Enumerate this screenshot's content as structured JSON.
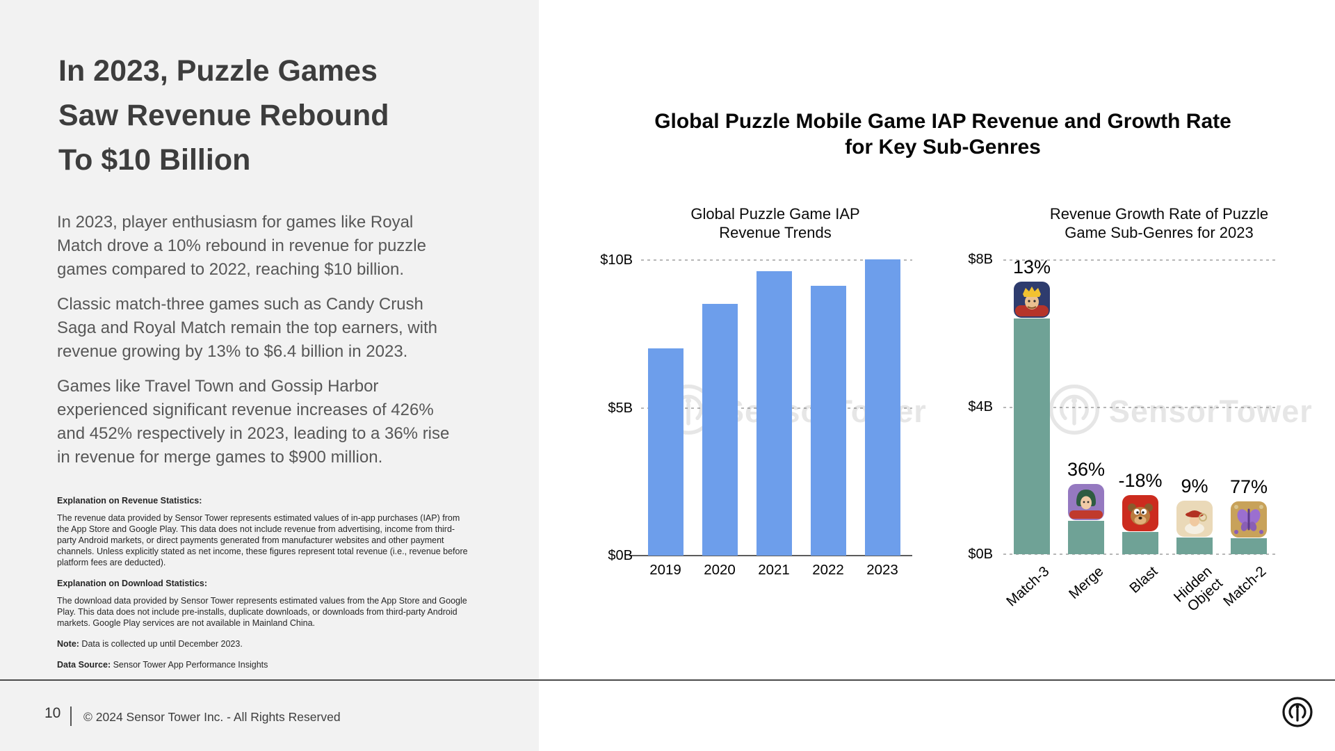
{
  "left_panel": {
    "headline_lines": [
      "In 2023, Puzzle Games",
      "Saw Revenue Rebound",
      "To $10 Billion"
    ],
    "paragraphs": [
      "In 2023, player enthusiasm for games like Royal Match drove a 10% rebound in revenue for puzzle games compared to 2022, reaching $10 billion.",
      "Classic match-three games such as Candy Crush Saga and Royal Match remain the top earners, with revenue growing by 13% to $6.4 billion in 2023.",
      "Games like Travel Town and Gossip Harbor experienced significant revenue increases of 426% and 452% respectively in 2023, leading to a 36% rise in revenue for merge games to $900 million."
    ],
    "notes": {
      "revenue_heading": "Explanation on Revenue Statistics:",
      "revenue_body": "The revenue data provided by Sensor Tower represents estimated values of in-app purchases (IAP) from the App Store and Google Play. This data does not include revenue from advertising, income from third-party Android markets, or direct payments generated from manufacturer websites and other payment channels. Unless explicitly stated as net income, these figures represent total revenue (i.e., revenue before platform fees are deducted).",
      "download_heading": "Explanation on Download Statistics:",
      "download_body": "The download data provided by Sensor Tower represents estimated values from the App Store and Google Play. This data does not include pre-installs, duplicate downloads, or downloads from third-party Android markets. Google Play services are not available in Mainland China.",
      "note_label": "Note:",
      "note_text": " Data is collected up until December 2023.",
      "source_label": "Data Source:",
      "source_text": " Sensor Tower App Performance Insights"
    },
    "footer": {
      "page_number": "10",
      "copyright": "© 2024 Sensor Tower Inc. - All Rights Reserved"
    }
  },
  "right_panel": {
    "main_title_lines": [
      "Global Puzzle Mobile Game IAP Revenue and Growth Rate",
      "for Key Sub-Genres"
    ],
    "watermark_text": "SensorTower"
  },
  "chart_data": [
    {
      "type": "bar",
      "title": "Global Puzzle Game IAP Revenue Trends",
      "title_lines": [
        "Global Puzzle Game IAP",
        "Revenue Trends"
      ],
      "categories": [
        "2019",
        "2020",
        "2021",
        "2022",
        "2023"
      ],
      "values": [
        7.0,
        8.5,
        9.6,
        9.1,
        10.0
      ],
      "unit": "USD billions (IAP revenue)",
      "y_ticks": [
        "$10B",
        "$5B",
        "$0B"
      ],
      "ylim": [
        0,
        10
      ],
      "grid": "dashed horizontal lines at $5B and $10B, solid baseline at $0B",
      "legend": "none",
      "bar_color": "#6d9eeb"
    },
    {
      "type": "bar",
      "title": "Revenue Growth Rate of Puzzle Game Sub-Genres for 2023",
      "title_lines": [
        "Revenue Growth Rate of Puzzle",
        "Game Sub-Genres for 2023"
      ],
      "categories": [
        "Match-3",
        "Merge",
        "Blast",
        "Hidden Object",
        "Match-2"
      ],
      "values": [
        6.4,
        0.9,
        0.6,
        0.45,
        0.43
      ],
      "unit": "USD billions (2023 IAP revenue)",
      "growth_labels": [
        "13%",
        "36%",
        "-18%",
        "9%",
        "77%"
      ],
      "growth_percent": [
        13,
        36,
        -18,
        9,
        77
      ],
      "icons": [
        "king-crown-app-icon",
        "woman-green-hair-app-icon",
        "bear-red-app-icon",
        "woman-red-hat-app-icon",
        "purple-butterfly-app-icon"
      ],
      "y_ticks": [
        "$8B",
        "$4B",
        "$0B"
      ],
      "ylim": [
        0,
        8
      ],
      "grid": "dashed horizontal lines at $0B, $4B and $8B",
      "legend": "none",
      "bar_color": "#6fa296"
    }
  ]
}
